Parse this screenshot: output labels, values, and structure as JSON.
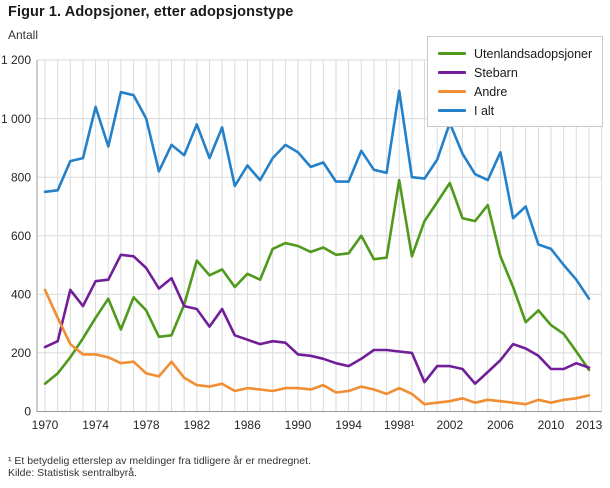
{
  "figure": {
    "title": "Figur 1. Adopsjoner, etter adopsjonstype",
    "y_axis_unit": "Antall",
    "footnote": "¹ Et betydelig etterslep av meldinger fra tidligere år er medregnet.",
    "source": "Kilde: Statistisk sentralbyrå."
  },
  "legend": {
    "position": "top-right",
    "items": [
      {
        "label": "Utenlandsadopsjoner",
        "color": "#4f9a1c"
      },
      {
        "label": "Stebarn",
        "color": "#701f99"
      },
      {
        "label": "Andre",
        "color": "#f18d32"
      },
      {
        "label": "I alt",
        "color": "#2481c9"
      }
    ]
  },
  "chart_data": {
    "type": "line",
    "title": "Figur 1. Adopsjoner, etter adopsjonstype",
    "xlabel": "",
    "ylabel": "Antall",
    "ylim": [
      0,
      1200
    ],
    "y_tick_step": 200,
    "grid": true,
    "x": [
      1970,
      1971,
      1972,
      1973,
      1974,
      1975,
      1976,
      1977,
      1978,
      1979,
      1980,
      1981,
      1982,
      1983,
      1984,
      1985,
      1986,
      1987,
      1988,
      1989,
      1990,
      1991,
      1992,
      1993,
      1994,
      1995,
      1996,
      1997,
      1998,
      1999,
      2000,
      2001,
      2002,
      2003,
      2004,
      2005,
      2006,
      2007,
      2008,
      2009,
      2010,
      2011,
      2012,
      2013
    ],
    "x_tick_labels": [
      {
        "year": 1970,
        "label": "1970"
      },
      {
        "year": 1974,
        "label": "1974"
      },
      {
        "year": 1978,
        "label": "1978"
      },
      {
        "year": 1982,
        "label": "1982"
      },
      {
        "year": 1986,
        "label": "1986"
      },
      {
        "year": 1990,
        "label": "1990"
      },
      {
        "year": 1994,
        "label": "1994"
      },
      {
        "year": 1998,
        "label": "1998¹"
      },
      {
        "year": 2002,
        "label": "2002"
      },
      {
        "year": 2006,
        "label": "2006"
      },
      {
        "year": 2010,
        "label": "2010"
      },
      {
        "year": 2013,
        "label": "2013"
      }
    ],
    "y_ticks": [
      {
        "value": 0,
        "label": "0"
      },
      {
        "value": 200,
        "label": "200"
      },
      {
        "value": 400,
        "label": "400"
      },
      {
        "value": 600,
        "label": "600"
      },
      {
        "value": 800,
        "label": "800"
      },
      {
        "value": 1000,
        "label": "1 000"
      },
      {
        "value": 1200,
        "label": "1 200"
      }
    ],
    "series": [
      {
        "name": "Utenlandsadopsjoner",
        "color": "#4f9a1c",
        "values": [
          95,
          130,
          185,
          250,
          320,
          385,
          280,
          390,
          345,
          255,
          260,
          365,
          515,
          465,
          485,
          425,
          470,
          450,
          555,
          575,
          565,
          545,
          560,
          535,
          540,
          600,
          520,
          525,
          790,
          530,
          650,
          715,
          780,
          660,
          650,
          705,
          530,
          425,
          305,
          345,
          295,
          265,
          205,
          142
        ]
      },
      {
        "name": "Stebarn",
        "color": "#701f99",
        "values": [
          220,
          240,
          415,
          360,
          445,
          450,
          535,
          530,
          490,
          420,
          455,
          360,
          350,
          290,
          350,
          260,
          245,
          230,
          240,
          235,
          195,
          190,
          180,
          165,
          155,
          180,
          210,
          210,
          205,
          200,
          100,
          155,
          155,
          145,
          95,
          135,
          175,
          230,
          215,
          190,
          145,
          145,
          165,
          150
        ]
      },
      {
        "name": "Andre",
        "color": "#f18d32",
        "values": [
          415,
          320,
          230,
          195,
          195,
          185,
          165,
          170,
          130,
          120,
          170,
          115,
          90,
          85,
          95,
          70,
          80,
          75,
          70,
          80,
          80,
          75,
          90,
          65,
          70,
          85,
          75,
          60,
          80,
          60,
          25,
          30,
          35,
          45,
          30,
          40,
          35,
          30,
          25,
          40,
          30,
          40,
          45,
          55
        ]
      },
      {
        "name": "I alt",
        "color": "#2481c9",
        "values": [
          750,
          755,
          855,
          865,
          1040,
          905,
          1090,
          1080,
          1000,
          820,
          910,
          875,
          980,
          865,
          970,
          770,
          840,
          790,
          865,
          910,
          885,
          835,
          850,
          785,
          785,
          890,
          825,
          815,
          1095,
          800,
          795,
          860,
          985,
          880,
          810,
          790,
          885,
          660,
          700,
          570,
          555,
          500,
          450,
          385
        ]
      }
    ]
  }
}
